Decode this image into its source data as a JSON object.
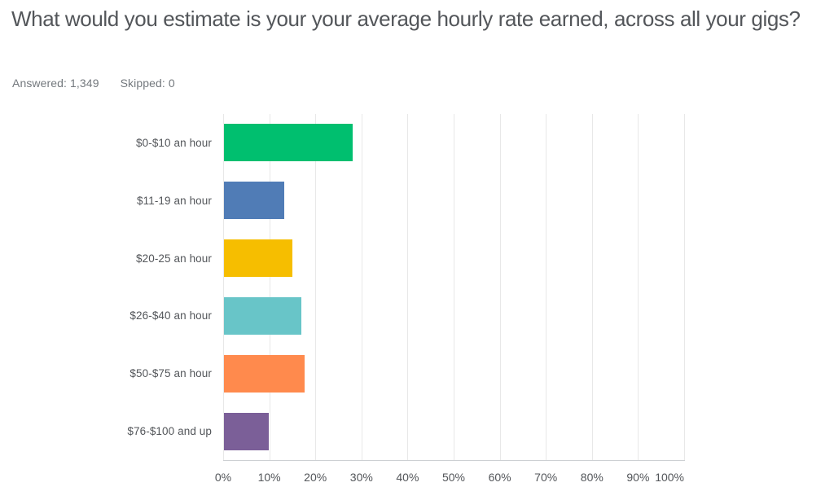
{
  "header": {
    "title": "What would you estimate is your your average hourly rate earned, across all your gigs?",
    "answered_label": "Answered:",
    "answered_value": "1,349",
    "skipped_label": "Skipped:",
    "skipped_value": "0"
  },
  "chart_data": {
    "type": "bar",
    "orientation": "horizontal",
    "title": "What would you estimate is your your average hourly rate earned, across all your gigs?",
    "categories": [
      "$0-$10 an hour",
      "$11-19 an hour",
      "$20-25 an hour",
      "$26-$40 an hour",
      "$50-$75 an hour",
      "$76-$100 and up"
    ],
    "values": [
      28.0,
      13.1,
      14.8,
      16.7,
      17.5,
      9.8
    ],
    "bar_colors": [
      "#00BF6F",
      "#507CB6",
      "#F6BE00",
      "#68C5C8",
      "#FF8A4D",
      "#7B5F98"
    ],
    "x_ticks": [
      "0%",
      "10%",
      "20%",
      "30%",
      "40%",
      "50%",
      "60%",
      "70%",
      "80%",
      "90%",
      "100%"
    ],
    "xlim": [
      0,
      100
    ],
    "xlabel": "",
    "ylabel": "",
    "grid": true,
    "legend": false
  },
  "colors": {
    "text": "#53565A",
    "muted_text": "#73787D",
    "gridline": "#E8E8E8",
    "axis_line": "#CDD0D3",
    "background": "#FFFFFF"
  }
}
